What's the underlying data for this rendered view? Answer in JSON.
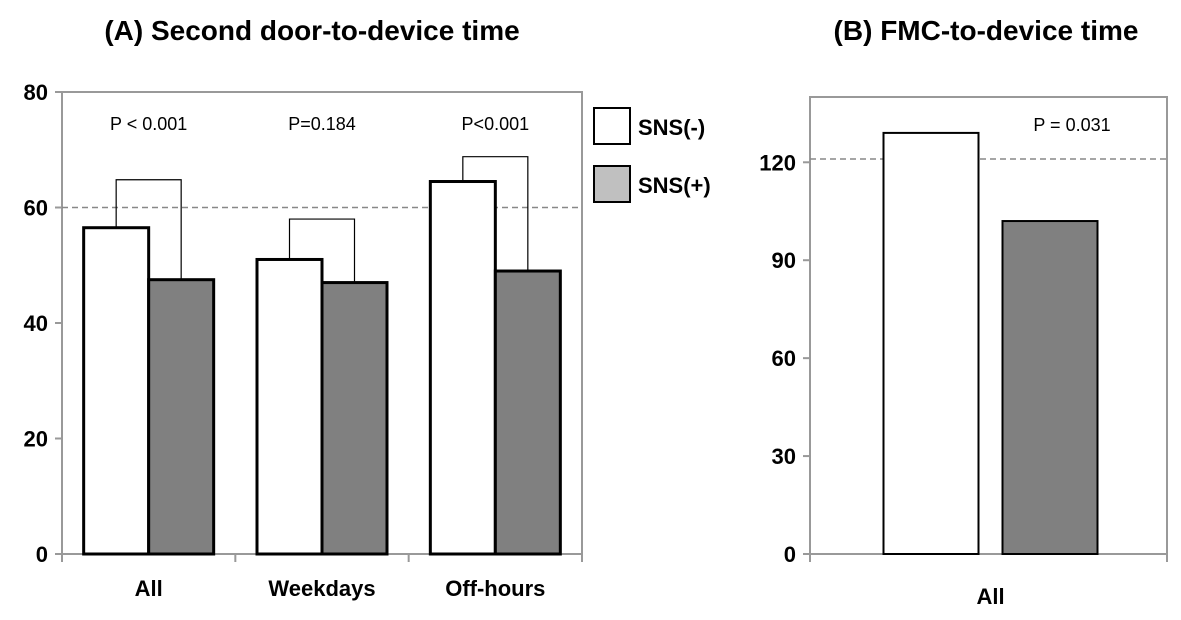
{
  "chart_data": [
    {
      "type": "bar",
      "title": "(A) Second door-to-device time",
      "categories": [
        "All",
        "Weekdays",
        "Off-hours"
      ],
      "series": [
        {
          "name": "SNS(-)",
          "values": [
            56.5,
            51,
            64.5
          ],
          "color": "#ffffff"
        },
        {
          "name": "SNS(+)",
          "values": [
            47.5,
            47,
            49
          ],
          "color": "#808080"
        }
      ],
      "ylim": [
        0,
        80
      ],
      "yticks": [
        0,
        20,
        40,
        60,
        80
      ],
      "reference_line": 60,
      "p_values": [
        "P < 0.001",
        "P=0.184",
        "P<0.001"
      ],
      "bracket_tops": [
        64.8,
        58,
        68.8
      ],
      "legend": "right"
    },
    {
      "type": "bar",
      "title": "(B) FMC-to-device time",
      "categories": [
        "All"
      ],
      "series": [
        {
          "name": "SNS(-)",
          "values": [
            129
          ],
          "color": "#ffffff"
        },
        {
          "name": "SNS(+)",
          "values": [
            102
          ],
          "color": "#808080"
        }
      ],
      "ylim": [
        0,
        140
      ],
      "yticks": [
        0,
        30,
        60,
        90,
        120
      ],
      "reference_line": 121,
      "p_values": [
        "P = 0.031"
      ]
    }
  ],
  "legend_items": [
    {
      "label": "SNS(-)",
      "color": "#ffffff"
    },
    {
      "label": "SNS(+)",
      "color": "#c0c0c0"
    }
  ]
}
